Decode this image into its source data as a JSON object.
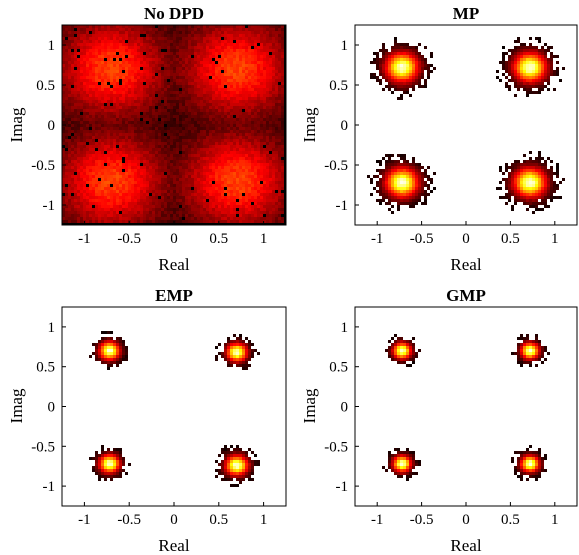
{
  "chart_data": [
    {
      "type": "heatmap",
      "title": "No DPD",
      "xlabel": "Real",
      "ylabel": "Imag",
      "xlim": [
        -1.25,
        1.25
      ],
      "ylim": [
        -1.25,
        1.25
      ],
      "xticks": [
        -1,
        -0.5,
        0,
        0.5,
        1
      ],
      "xtick_labels": [
        "-1",
        "-0.5",
        "0",
        "0.5",
        "1"
      ],
      "yticks": [
        -1,
        -0.5,
        0,
        0.5,
        1
      ],
      "ytick_labels": [
        "-1",
        "-0.5",
        "0",
        "0.5",
        "1"
      ],
      "clusters": [
        {
          "x": -0.7,
          "y": 0.7,
          "spread": 0.4
        },
        {
          "x": 0.7,
          "y": 0.7,
          "spread": 0.4
        },
        {
          "x": -0.7,
          "y": -0.7,
          "spread": 0.4
        },
        {
          "x": 0.7,
          "y": -0.7,
          "spread": 0.4
        }
      ],
      "colormap": "hot",
      "background": "#000000"
    },
    {
      "type": "heatmap",
      "title": "MP",
      "xlabel": "Real",
      "ylabel": "Imag",
      "xlim": [
        -1.25,
        1.25
      ],
      "ylim": [
        -1.25,
        1.25
      ],
      "xticks": [
        -1,
        -0.5,
        0,
        0.5,
        1
      ],
      "xtick_labels": [
        "-1",
        "-0.5",
        "0",
        "0.5",
        "1"
      ],
      "yticks": [
        -1,
        -0.5,
        0,
        0.5,
        1
      ],
      "ytick_labels": [
        "-1",
        "-0.5",
        "0",
        "0.5",
        "1"
      ],
      "clusters": [
        {
          "x": -0.72,
          "y": 0.72,
          "spread": 0.16
        },
        {
          "x": 0.72,
          "y": 0.72,
          "spread": 0.16
        },
        {
          "x": -0.72,
          "y": -0.72,
          "spread": 0.16
        },
        {
          "x": 0.72,
          "y": -0.72,
          "spread": 0.16
        }
      ],
      "colormap": "hot",
      "background": "#ffffff"
    },
    {
      "type": "heatmap",
      "title": "EMP",
      "xlabel": "Real",
      "ylabel": "Imag",
      "xlim": [
        -1.25,
        1.25
      ],
      "ylim": [
        -1.25,
        1.25
      ],
      "xticks": [
        -1,
        -0.5,
        0,
        0.5,
        1
      ],
      "xtick_labels": [
        "-1",
        "-0.5",
        "0",
        "0.5",
        "1"
      ],
      "yticks": [
        -1,
        -0.5,
        0,
        0.5,
        1
      ],
      "ytick_labels": [
        "-1",
        "-0.5",
        "0",
        "0.5",
        "1"
      ],
      "clusters": [
        {
          "x": -0.72,
          "y": 0.7,
          "spread": 0.1
        },
        {
          "x": 0.7,
          "y": 0.68,
          "spread": 0.1
        },
        {
          "x": -0.72,
          "y": -0.72,
          "spread": 0.1
        },
        {
          "x": 0.7,
          "y": -0.74,
          "spread": 0.11
        }
      ],
      "colormap": "hot",
      "background": "#ffffff"
    },
    {
      "type": "heatmap",
      "title": "GMP",
      "xlabel": "Real",
      "ylabel": "Imag",
      "xlim": [
        -1.25,
        1.25
      ],
      "ylim": [
        -1.25,
        1.25
      ],
      "xticks": [
        -1,
        -0.5,
        0,
        0.5,
        1
      ],
      "xtick_labels": [
        "-1",
        "-0.5",
        "0",
        "0.5",
        "1"
      ],
      "yticks": [
        -1,
        -0.5,
        0,
        0.5,
        1
      ],
      "ytick_labels": [
        "-1",
        "-0.5",
        "0",
        "0.5",
        "1"
      ],
      "clusters": [
        {
          "x": -0.72,
          "y": 0.7,
          "spread": 0.09
        },
        {
          "x": 0.72,
          "y": 0.7,
          "spread": 0.09
        },
        {
          "x": -0.72,
          "y": -0.72,
          "spread": 0.09
        },
        {
          "x": 0.72,
          "y": -0.72,
          "spread": 0.09
        }
      ],
      "colormap": "hot",
      "background": "#ffffff"
    }
  ]
}
